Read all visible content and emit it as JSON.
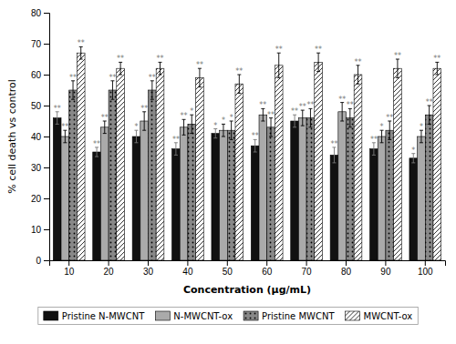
{
  "chart_data": {
    "type": "bar",
    "categories": [
      "10",
      "20",
      "30",
      "40",
      "50",
      "60",
      "70",
      "80",
      "90",
      "100"
    ],
    "series": [
      {
        "name": "Pristine N-MWCNT",
        "color": "#111111",
        "values": [
          46,
          35,
          40,
          36,
          41,
          37,
          45,
          34,
          36,
          33
        ],
        "errors": [
          2.0,
          1.5,
          2.0,
          2.0,
          1.5,
          2.0,
          2.0,
          2.5,
          2.0,
          1.5
        ],
        "stars": [
          "**",
          "**",
          "*",
          "**",
          "*",
          "**",
          "**",
          "**",
          "**",
          "*"
        ]
      },
      {
        "name": "N-MWCNT-ox",
        "color": "#aaaaaa",
        "values": [
          40,
          43,
          45,
          43,
          42,
          47,
          46,
          48,
          40,
          40
        ],
        "errors": [
          2.0,
          2.0,
          3.0,
          2.5,
          2.0,
          2.0,
          2.5,
          3.0,
          2.0,
          2.0
        ],
        "stars": [
          "**",
          "**",
          "**",
          "**",
          "*",
          "**",
          "**",
          "**",
          "*",
          "*"
        ]
      },
      {
        "name": "Pristine MWCNT",
        "color": "#888888",
        "values": [
          55,
          55,
          55,
          44,
          42,
          43,
          46,
          46,
          42,
          47
        ],
        "errors": [
          3.0,
          3.0,
          3.0,
          3.0,
          3.0,
          3.0,
          3.0,
          3.0,
          3.0,
          3.0
        ],
        "stars": [
          "**",
          "**",
          "**",
          "*",
          "*",
          "**",
          "**",
          "**",
          "**",
          "**"
        ]
      },
      {
        "name": "MWCNT-ox",
        "color": "#ffffff",
        "values": [
          67,
          62,
          62,
          59,
          57,
          63,
          64,
          60,
          62,
          62
        ],
        "errors": [
          2.0,
          2.0,
          2.0,
          3.0,
          3.0,
          4.0,
          3.0,
          3.0,
          3.0,
          2.0
        ],
        "stars": [
          "**",
          "**",
          "**",
          "**",
          "**",
          "**",
          "**",
          "**",
          "**",
          "**"
        ]
      }
    ],
    "xlabel": "Concentration (μg/mL)",
    "ylabel": "% cell death vs control",
    "ylim": [
      0,
      80
    ],
    "yticks": [
      0,
      10,
      20,
      30,
      40,
      50,
      60,
      70,
      80
    ],
    "grid": false,
    "legend": "bottom"
  }
}
